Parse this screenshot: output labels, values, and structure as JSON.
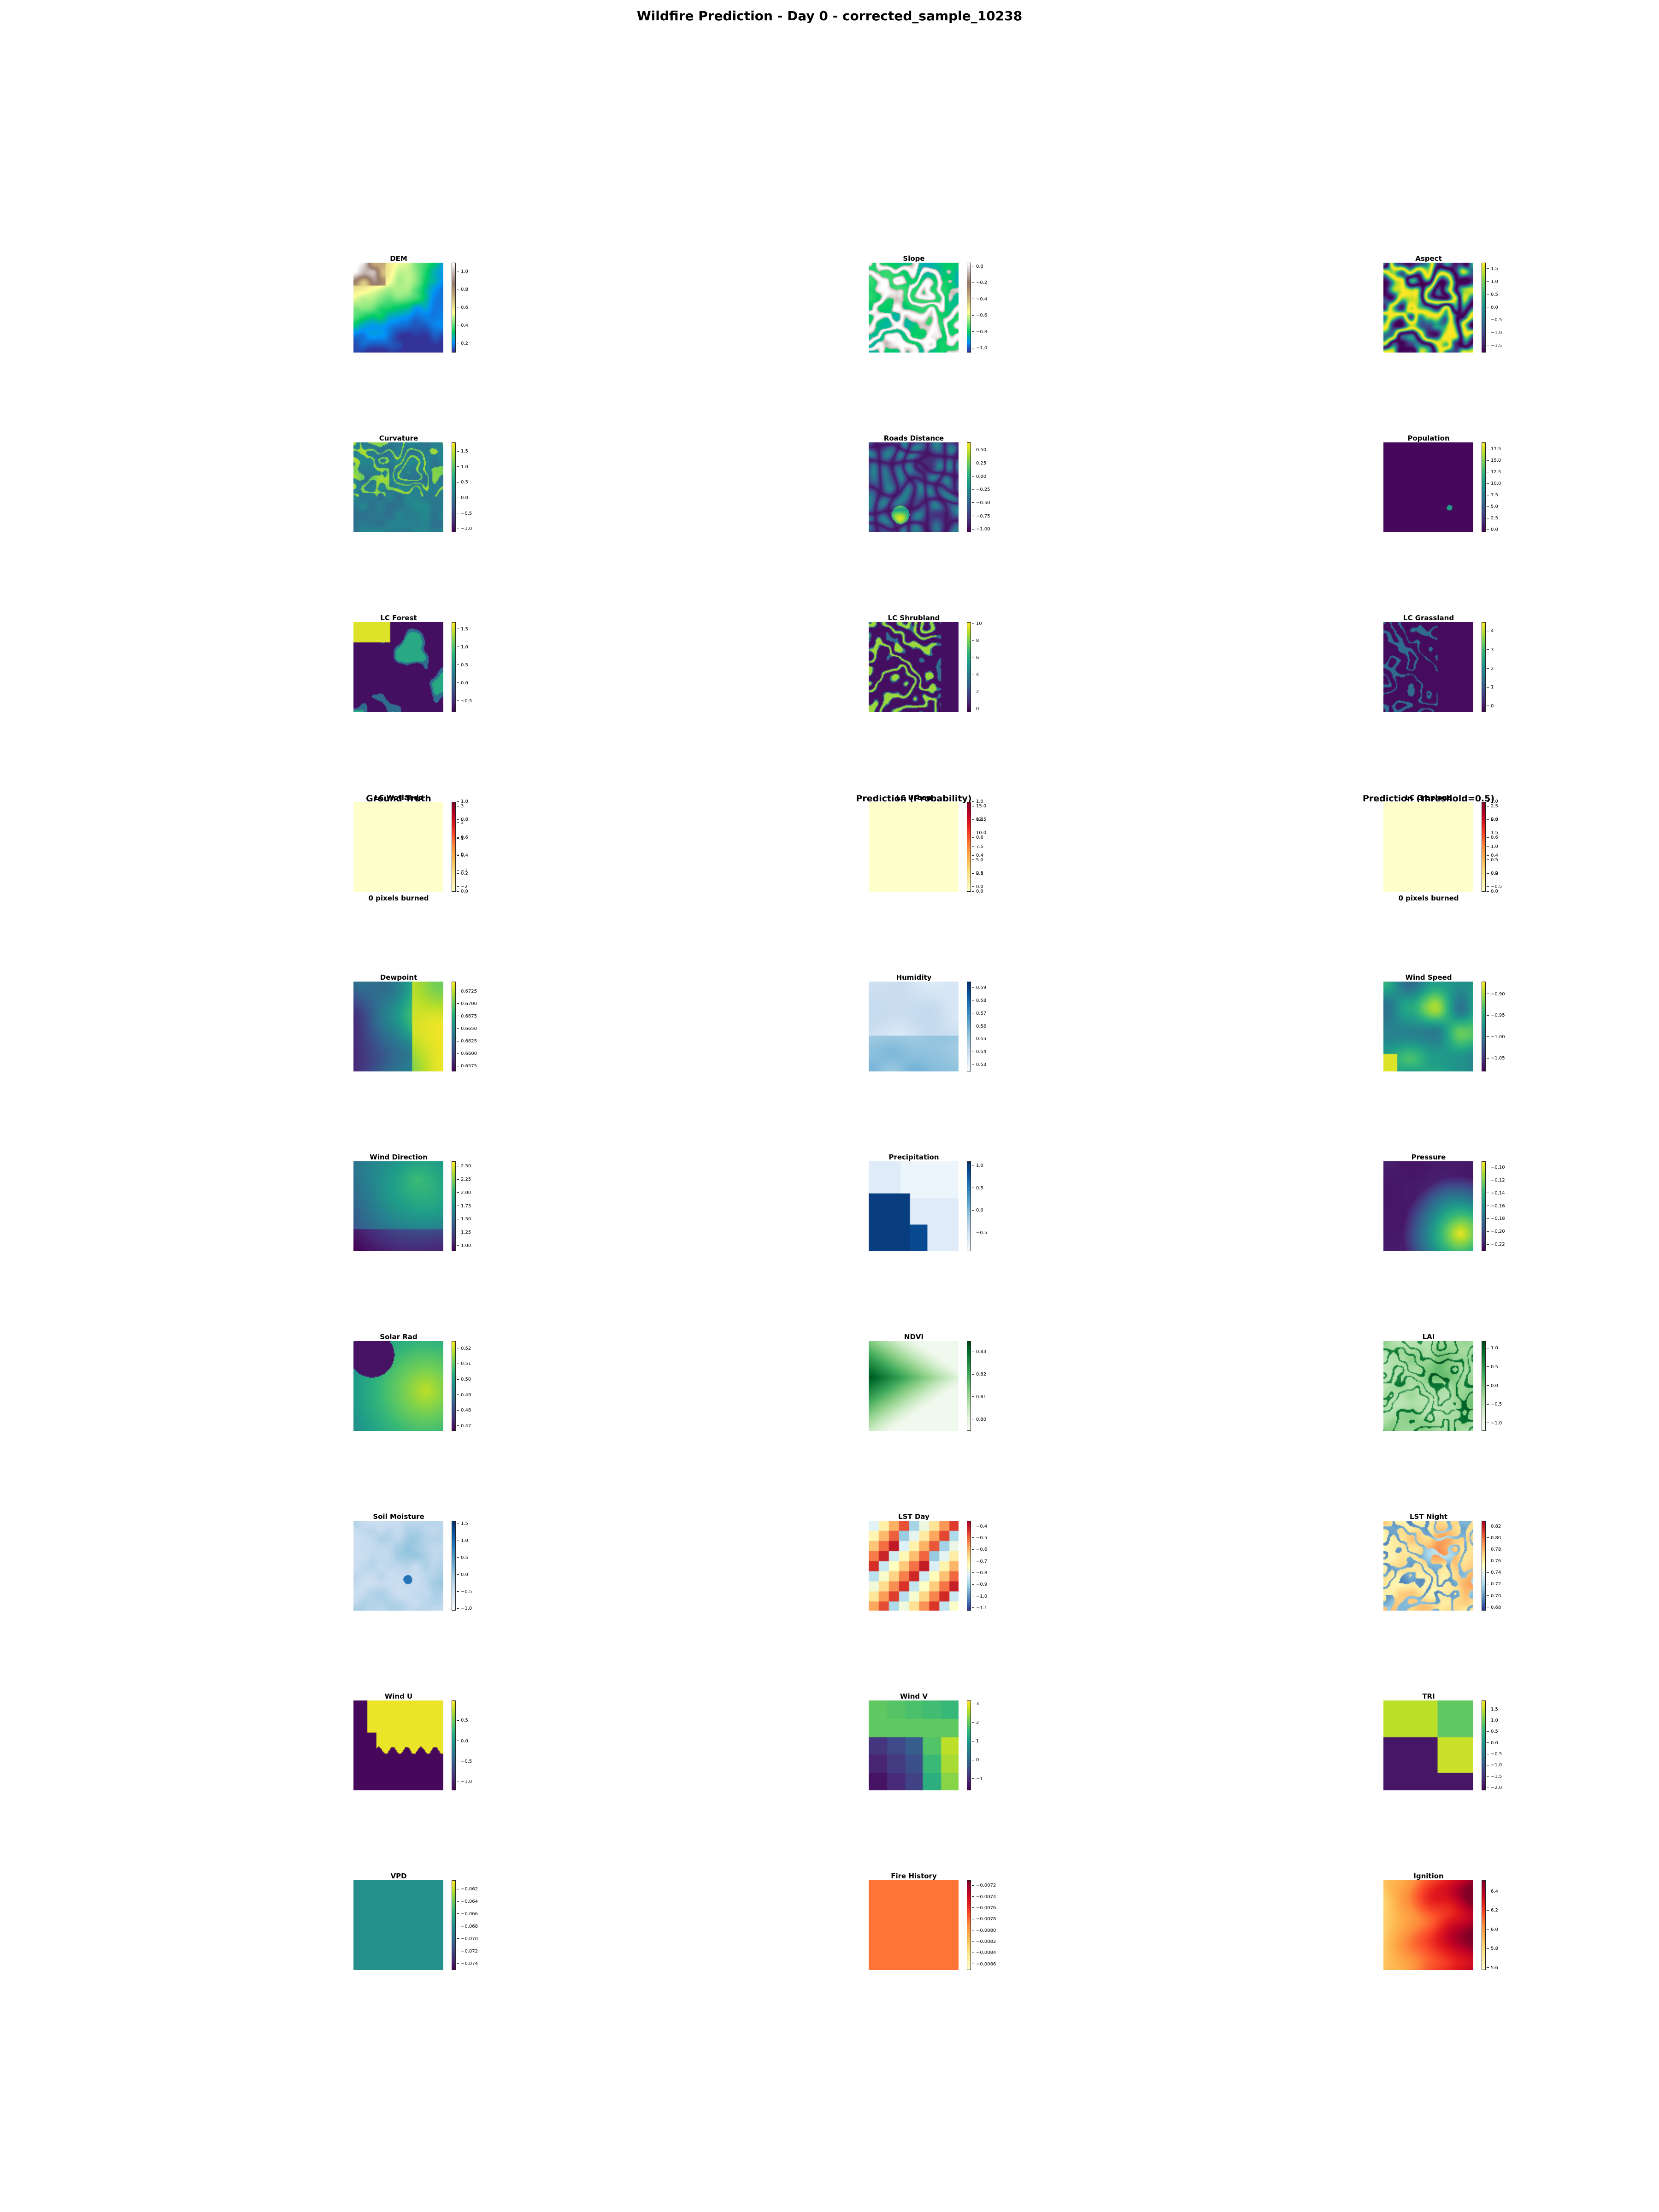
{
  "title": "Wildfire Prediction - Day 0 - corrected_sample_10238",
  "chart_data": {
    "type": "heatmap",
    "title": "Wildfire Prediction - Day 0 - corrected_sample_10238",
    "grid": false,
    "layout": "11 rows x 3 columns of heatmap panels with colorbars",
    "panels": [
      {
        "name": "DEM",
        "cmap": "terrain",
        "ticks": [
          "1.0",
          "0.8",
          "0.6",
          "0.4",
          "0.2"
        ],
        "vmin": 0.1,
        "vmax": 1.1
      },
      {
        "name": "Slope",
        "cmap": "terrain",
        "ticks": [
          "0.0",
          "−0.2",
          "−0.4",
          "−0.6",
          "−0.8",
          "−1.0"
        ],
        "vmin": -1.05,
        "vmax": 0.05
      },
      {
        "name": "Aspect",
        "cmap": "viridis",
        "ticks": [
          "1.5",
          "1.0",
          "0.5",
          "0.0",
          "−0.5",
          "−1.0",
          "−1.5"
        ],
        "vmin": -1.75,
        "vmax": 1.75
      },
      {
        "name": "Curvature",
        "cmap": "viridis",
        "ticks": [
          "1.5",
          "1.0",
          "0.5",
          "0.0",
          "−0.5",
          "−1.0"
        ],
        "vmin": -1.1,
        "vmax": 1.8
      },
      {
        "name": "Roads Distance",
        "cmap": "viridis",
        "ticks": [
          "0.50",
          "0.25",
          "0.00",
          "−0.25",
          "−0.50",
          "−0.75",
          "−1.00"
        ],
        "vmin": -1.05,
        "vmax": 0.65
      },
      {
        "name": "Population",
        "cmap": "viridis",
        "ticks": [
          "17.5",
          "15.0",
          "12.5",
          "10.0",
          "7.5",
          "5.0",
          "2.5",
          "0.0"
        ],
        "vmin": -0.5,
        "vmax": 19.0
      },
      {
        "name": "LC Forest",
        "cmap": "viridis",
        "ticks": [
          "1.5",
          "1.0",
          "0.5",
          "0.0",
          "−0.5"
        ],
        "vmin": -0.8,
        "vmax": 1.7
      },
      {
        "name": "LC Shrubland",
        "cmap": "viridis",
        "ticks": [
          "10",
          "8",
          "6",
          "4",
          "2",
          "0"
        ],
        "vmin": -0.3,
        "vmax": 10.2
      },
      {
        "name": "LC Grassland",
        "cmap": "viridis",
        "ticks": [
          "4",
          "3",
          "2",
          "1",
          "0"
        ],
        "vmin": -0.3,
        "vmax": 4.5
      },
      {
        "name": "Ground Truth",
        "overlap_title": "LC Wetlands",
        "cmap": "YlOrRd",
        "ticks": [
          "1.0",
          "0.8",
          "0.6",
          "0.4",
          "0.2",
          "0.0"
        ],
        "ticks_behind": [
          "3",
          "2",
          "1",
          "0",
          "−1",
          "−2"
        ],
        "vmin": 0.0,
        "vmax": 1.0,
        "note": "0 pixels burned"
      },
      {
        "name": "Prediction (Probability)",
        "overlap_title": "LC Urban",
        "cmap": "YlOrRd",
        "ticks": [
          "1.0",
          "0.8",
          "0.6",
          "0.4",
          "0.2",
          "0.0"
        ],
        "ticks_behind": [
          "15.0",
          "12.5",
          "10.0",
          "7.5",
          "5.0",
          "2.5",
          "0.0"
        ],
        "vmin": 0.0,
        "vmax": 1.0
      },
      {
        "name": "Prediction (threshold=0.5)",
        "overlap_title": "LC Cropland",
        "cmap": "YlOrRd",
        "ticks": [
          "1.0",
          "0.8",
          "0.6",
          "0.4",
          "0.2",
          "0.0"
        ],
        "ticks_behind": [
          "2.5",
          "2.0",
          "1.5",
          "1.0",
          "0.5",
          "0.0",
          "−0.5"
        ],
        "vmin": 0.0,
        "vmax": 1.0,
        "note": "0 pixels burned"
      },
      {
        "name": "Dewpoint",
        "cmap": "viridis",
        "ticks": [
          "0.6725",
          "0.6700",
          "0.6675",
          "0.6650",
          "0.6625",
          "0.6600",
          "0.6575"
        ],
        "vmin": 0.6565,
        "vmax": 0.6745
      },
      {
        "name": "Humidity",
        "cmap": "Blues",
        "ticks": [
          "0.59",
          "0.58",
          "0.57",
          "0.56",
          "0.55",
          "0.54",
          "0.53"
        ],
        "vmin": 0.525,
        "vmax": 0.595
      },
      {
        "name": "Wind Speed",
        "cmap": "viridis",
        "ticks": [
          "−0.90",
          "−0.95",
          "−1.00",
          "−1.05"
        ],
        "vmin": -1.08,
        "vmax": -0.87
      },
      {
        "name": "Wind Direction",
        "cmap": "viridis",
        "ticks": [
          "2.50",
          "2.25",
          "2.00",
          "1.75",
          "1.50",
          "1.25",
          "1.00"
        ],
        "vmin": 0.9,
        "vmax": 2.6
      },
      {
        "name": "Precipitation",
        "cmap": "Blues",
        "ticks": [
          "1.0",
          "0.5",
          "0.0",
          "−0.5"
        ],
        "vmin": -0.9,
        "vmax": 1.1
      },
      {
        "name": "Pressure",
        "cmap": "viridis",
        "ticks": [
          "−0.10",
          "−0.12",
          "−0.14",
          "−0.16",
          "−0.18",
          "−0.20",
          "−0.22"
        ],
        "vmin": -0.23,
        "vmax": -0.09
      },
      {
        "name": "Solar Rad",
        "cmap": "viridis",
        "ticks": [
          "0.52",
          "0.51",
          "0.50",
          "0.49",
          "0.48",
          "0.47"
        ],
        "vmin": 0.467,
        "vmax": 0.525
      },
      {
        "name": "NDVI",
        "cmap": "Greens",
        "ticks": [
          "0.83",
          "0.82",
          "0.81",
          "0.80"
        ],
        "vmin": 0.795,
        "vmax": 0.835
      },
      {
        "name": "LAI",
        "cmap": "Greens",
        "ticks": [
          "1.0",
          "0.5",
          "0.0",
          "−0.5",
          "−1.0"
        ],
        "vmin": -1.2,
        "vmax": 1.2
      },
      {
        "name": "Soil Moisture",
        "cmap": "Blues",
        "ticks": [
          "1.5",
          "1.0",
          "0.5",
          "0.0",
          "−0.5",
          "−1.0"
        ],
        "vmin": -1.05,
        "vmax": 1.6
      },
      {
        "name": "LST Day",
        "cmap": "RdYlBu_r",
        "ticks": [
          "−0.4",
          "−0.5",
          "−0.6",
          "−0.7",
          "−0.8",
          "−0.9",
          "−1.0",
          "−1.1"
        ],
        "vmin": -1.12,
        "vmax": -0.35
      },
      {
        "name": "LST Night",
        "cmap": "RdYlBu_r",
        "ticks": [
          "0.82",
          "0.80",
          "0.78",
          "0.76",
          "0.74",
          "0.72",
          "0.70",
          "0.68"
        ],
        "vmin": 0.675,
        "vmax": 0.83
      },
      {
        "name": "Wind U",
        "cmap": "viridis",
        "ticks": [
          "0.5",
          "0.0",
          "−0.5",
          "−1.0"
        ],
        "vmin": -1.2,
        "vmax": 1.0
      },
      {
        "name": "Wind V",
        "cmap": "viridis",
        "ticks": [
          "3",
          "2",
          "1",
          "0",
          "−1"
        ],
        "vmin": -1.6,
        "vmax": 3.2
      },
      {
        "name": "TRI",
        "cmap": "viridis",
        "ticks": [
          "1.5",
          "1.0",
          "0.5",
          "0.0",
          "−0.5",
          "−1.0",
          "−1.5",
          "−2.0"
        ],
        "vmin": -2.1,
        "vmax": 1.9
      },
      {
        "name": "VPD",
        "cmap": "viridis",
        "ticks": [
          "−0.062",
          "−0.064",
          "−0.066",
          "−0.068",
          "−0.070",
          "−0.072",
          "−0.074"
        ],
        "vmin": -0.075,
        "vmax": -0.0605
      },
      {
        "name": "Fire History",
        "cmap": "YlOrRd",
        "ticks": [
          "−0.0072",
          "−0.0074",
          "−0.0076",
          "−0.0078",
          "−0.0080",
          "−0.0082",
          "−0.0084",
          "−0.0086"
        ],
        "vmin": -0.0087,
        "vmax": -0.0071
      },
      {
        "name": "Ignition",
        "cmap": "YlOrRd",
        "ticks": [
          "6.4",
          "6.2",
          "6.0",
          "5.8",
          "5.6"
        ],
        "vmin": 5.58,
        "vmax": 6.52
      }
    ]
  }
}
